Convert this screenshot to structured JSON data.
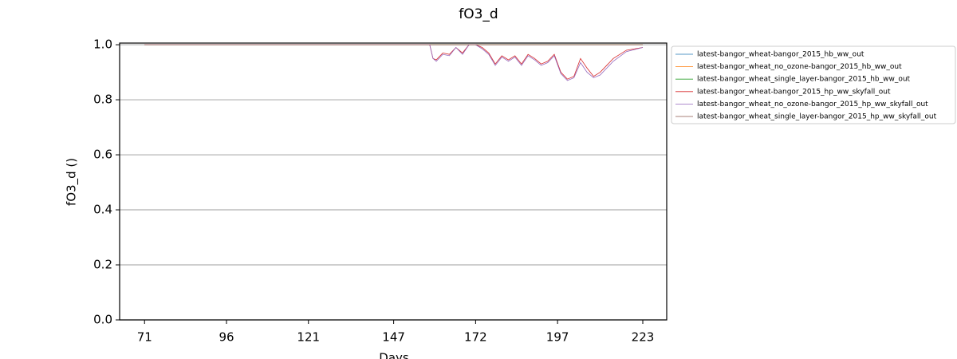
{
  "chart_data": {
    "type": "line",
    "title": "fO3_d",
    "x_label": "Days",
    "y_label": "fO3_d ()",
    "x": [
      71,
      100,
      130,
      158,
      159,
      160,
      162,
      164,
      166,
      168,
      170,
      172,
      174,
      176,
      178,
      180,
      182,
      184,
      186,
      188,
      190,
      192,
      194,
      196,
      198,
      200,
      202,
      204,
      206,
      208,
      210,
      214,
      218,
      223
    ],
    "series": [
      {
        "name": "latest-bangor_wheat-bangor_2015_hb_ww_out",
        "color": "#1f77b4",
        "values": [
          1,
          1,
          1,
          1,
          1,
          1,
          1,
          1,
          1,
          1,
          1,
          1,
          1,
          1,
          1,
          1,
          1,
          1,
          1,
          1,
          1,
          1,
          1,
          1,
          1,
          1,
          1,
          1,
          1,
          1,
          1,
          1,
          1,
          1
        ]
      },
      {
        "name": "latest-bangor_wheat_no_ozone-bangor_2015_hb_ww_out",
        "color": "#ff7f0e",
        "values": [
          1,
          1,
          1,
          1,
          1,
          1,
          1,
          1,
          1,
          1,
          1,
          1,
          1,
          1,
          1,
          1,
          1,
          1,
          1,
          1,
          1,
          1,
          1,
          1,
          1,
          1,
          1,
          1,
          1,
          1,
          1,
          1,
          1,
          1
        ]
      },
      {
        "name": "latest-bangor_wheat_single_layer-bangor_2015_hb_ww_out",
        "color": "#2ca02c",
        "values": [
          1,
          1,
          1,
          1,
          1,
          1,
          1,
          1,
          1,
          1,
          1,
          1,
          1,
          1,
          1,
          1,
          1,
          1,
          1,
          1,
          1,
          1,
          1,
          1,
          1,
          1,
          1,
          1,
          1,
          1,
          1,
          1,
          1,
          1
        ]
      },
      {
        "name": "latest-bangor_wheat-bangor_2015_hp_ww_skyfall_out",
        "color": "#d62728",
        "values": [
          1,
          1,
          1,
          1,
          0.95,
          0.945,
          0.97,
          0.965,
          0.99,
          0.97,
          1.0,
          1.0,
          0.99,
          0.97,
          0.93,
          0.96,
          0.945,
          0.96,
          0.93,
          0.965,
          0.95,
          0.93,
          0.94,
          0.965,
          0.9,
          0.875,
          0.885,
          0.95,
          0.915,
          0.885,
          0.9,
          0.95,
          0.98,
          0.99
        ]
      },
      {
        "name": "latest-bangor_wheat_no_ozone-bangor_2015_hp_ww_skyfall_out",
        "color": "#9467bd",
        "values": [
          1,
          1,
          1,
          1,
          0.95,
          0.94,
          0.965,
          0.96,
          0.99,
          0.965,
          1.0,
          1.0,
          0.985,
          0.965,
          0.925,
          0.955,
          0.94,
          0.955,
          0.925,
          0.96,
          0.945,
          0.925,
          0.935,
          0.96,
          0.895,
          0.87,
          0.88,
          0.935,
          0.9,
          0.88,
          0.89,
          0.94,
          0.975,
          0.99
        ]
      },
      {
        "name": "latest-bangor_wheat_single_layer-bangor_2015_hp_ww_skyfall_out",
        "color": "#8c564b",
        "values": [
          1,
          1,
          1,
          1,
          1,
          1,
          1,
          1,
          1,
          1,
          1,
          1,
          1,
          1,
          1,
          1,
          1,
          1,
          1,
          1,
          1,
          1,
          1,
          1,
          1,
          1,
          1,
          1,
          1,
          1,
          1,
          1,
          1,
          1
        ]
      }
    ],
    "xlim": [
      63.4,
      230.3
    ],
    "xticks": [
      71,
      96,
      121,
      147,
      172,
      197,
      223
    ],
    "ylim": [
      0,
      1.006
    ],
    "yticks": [
      {
        "value": 0,
        "label": "0.0"
      },
      0.2,
      0.4,
      0.6,
      0.8,
      {
        "value": 1,
        "label": "1.0"
      }
    ],
    "grid": true,
    "legend": "outside right"
  }
}
